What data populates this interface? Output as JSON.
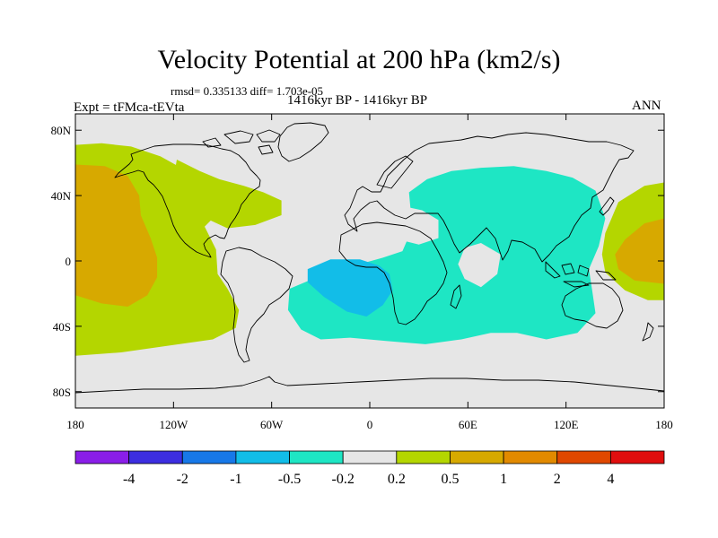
{
  "map": {
    "title": "Velocity Potential at 200 hPa (km2/s)",
    "stats_line": "rmsd= 0.335133 diff= 1.703e-05",
    "experiment_label": "Expt = tFMca-tEVta",
    "period_label": "1416kyr BP - 1416kyr BP",
    "season_label": "ANN",
    "variable": "velocity potential",
    "pressure_level": "200 hPa",
    "units": "km2/s",
    "projection": "cylindrical equidistant",
    "lon_range": [
      -180,
      180
    ],
    "lat_range": [
      -90,
      90
    ],
    "lat_ticks": [
      {
        "value": 80,
        "label": "80N"
      },
      {
        "value": 40,
        "label": "40N"
      },
      {
        "value": 0,
        "label": "0"
      },
      {
        "value": -40,
        "label": "40S"
      },
      {
        "value": -80,
        "label": "80S"
      }
    ],
    "lon_ticks": [
      {
        "value": -180,
        "label": "180"
      },
      {
        "value": -120,
        "label": "120W"
      },
      {
        "value": -60,
        "label": "60W"
      },
      {
        "value": 0,
        "label": "0"
      },
      {
        "value": 60,
        "label": "60E"
      },
      {
        "value": 120,
        "label": "120E"
      },
      {
        "value": 180,
        "label": "180"
      }
    ],
    "regions": [
      {
        "name": "pacific-east-positive",
        "level": 0.5,
        "color": "#b4d600",
        "lonlat": [
          [
            -180,
            71
          ],
          [
            -164,
            72
          ],
          [
            -146,
            70
          ],
          [
            -128,
            64
          ],
          [
            -110,
            54
          ],
          [
            -95,
            44
          ],
          [
            -88,
            38
          ],
          [
            -92,
            30
          ],
          [
            -101,
            21
          ],
          [
            -94,
            7
          ],
          [
            -93,
            -8
          ],
          [
            -87,
            -17
          ],
          [
            -80,
            -30
          ],
          [
            -82,
            -41
          ],
          [
            -96,
            -48
          ],
          [
            -124,
            -52
          ],
          [
            -152,
            -56
          ],
          [
            -180,
            -58
          ]
        ]
      },
      {
        "name": "pacific-east-strong",
        "level": 1,
        "color": "#d7a900",
        "lonlat": [
          [
            -180,
            59
          ],
          [
            -162,
            58
          ],
          [
            -148,
            52
          ],
          [
            -141,
            40
          ],
          [
            -140,
            28
          ],
          [
            -134,
            14
          ],
          [
            -130,
            2
          ],
          [
            -130,
            -10
          ],
          [
            -136,
            -21
          ],
          [
            -148,
            -28
          ],
          [
            -164,
            -26
          ],
          [
            -180,
            -21
          ]
        ]
      },
      {
        "name": "atlantic-north-positive",
        "level": 0.5,
        "color": "#b4d600",
        "lonlat": [
          [
            -118,
            62
          ],
          [
            -104,
            55
          ],
          [
            -92,
            50
          ],
          [
            -77,
            46
          ],
          [
            -65,
            42
          ],
          [
            -54,
            37
          ],
          [
            -54,
            28
          ],
          [
            -70,
            22
          ],
          [
            -87,
            20
          ],
          [
            -100,
            26
          ],
          [
            -110,
            38
          ],
          [
            -120,
            50
          ]
        ]
      },
      {
        "name": "indo-atlantic-negative",
        "level": -0.2,
        "color": "#1ee6c4",
        "lonlat": [
          [
            -49,
            -17
          ],
          [
            -30,
            -9
          ],
          [
            -10,
            -3
          ],
          [
            8,
            2
          ],
          [
            20,
            6
          ],
          [
            26,
            20
          ],
          [
            24,
            42
          ],
          [
            35,
            50
          ],
          [
            50,
            55
          ],
          [
            68,
            57
          ],
          [
            88,
            58
          ],
          [
            108,
            55
          ],
          [
            124,
            51
          ],
          [
            138,
            43
          ],
          [
            144,
            26
          ],
          [
            140,
            9
          ],
          [
            134,
            -5
          ],
          [
            136,
            -18
          ],
          [
            138,
            -32
          ],
          [
            127,
            -44
          ],
          [
            108,
            -48
          ],
          [
            90,
            -44
          ],
          [
            74,
            -44
          ],
          [
            56,
            -48
          ],
          [
            34,
            -51
          ],
          [
            10,
            -49
          ],
          [
            -12,
            -47
          ],
          [
            -30,
            -48
          ],
          [
            -42,
            -42
          ],
          [
            -50,
            -30
          ]
        ]
      },
      {
        "name": "atlantic-south-negative",
        "level": -0.5,
        "color": "#12bde8",
        "lonlat": [
          [
            -38,
            -5
          ],
          [
            -24,
            1
          ],
          [
            -6,
            1
          ],
          [
            6,
            -3
          ],
          [
            12,
            -8
          ],
          [
            14,
            -18
          ],
          [
            8,
            -27
          ],
          [
            -2,
            -34
          ],
          [
            -14,
            -31
          ],
          [
            -28,
            -22
          ],
          [
            -38,
            -13
          ]
        ]
      },
      {
        "name": "west-pacific-positive",
        "level": 0.5,
        "color": "#b4d600",
        "lonlat": [
          [
            180,
            48
          ],
          [
            168,
            46
          ],
          [
            152,
            36
          ],
          [
            144,
            17
          ],
          [
            142,
            4
          ],
          [
            144,
            -7
          ],
          [
            156,
            -18
          ],
          [
            170,
            -24
          ],
          [
            180,
            -24
          ]
        ]
      },
      {
        "name": "west-pacific-strong",
        "level": 1,
        "color": "#d7a900",
        "lonlat": [
          [
            180,
            26
          ],
          [
            168,
            23
          ],
          [
            156,
            13
          ],
          [
            150,
            4
          ],
          [
            152,
            -5
          ],
          [
            162,
            -12
          ],
          [
            180,
            -14
          ]
        ]
      }
    ],
    "holes": [
      {
        "name": "arabia-neutral",
        "lonlat": [
          [
            8,
            31
          ],
          [
            18,
            34
          ],
          [
            32,
            31
          ],
          [
            42,
            25
          ],
          [
            42,
            14
          ],
          [
            30,
            10
          ],
          [
            14,
            14
          ],
          [
            6,
            20
          ]
        ]
      },
      {
        "name": "indian-ocean-neutral",
        "lonlat": [
          [
            58,
            8
          ],
          [
            68,
            11
          ],
          [
            80,
            4
          ],
          [
            78,
            -8
          ],
          [
            68,
            -16
          ],
          [
            58,
            -11
          ],
          [
            54,
            -2
          ]
        ]
      }
    ]
  },
  "colorbar": {
    "colors": [
      "#8a1ee8",
      "#3c2ee0",
      "#1778e8",
      "#12bde8",
      "#1ee6c4",
      "#e6e6e6",
      "#b4d600",
      "#d7a900",
      "#e28a00",
      "#e04800",
      "#e00e0e"
    ],
    "labels": [
      "-4",
      "-2",
      "-1",
      "-0.5",
      "-0.2",
      "0.2",
      "0.5",
      "1",
      "2",
      "4"
    ]
  }
}
